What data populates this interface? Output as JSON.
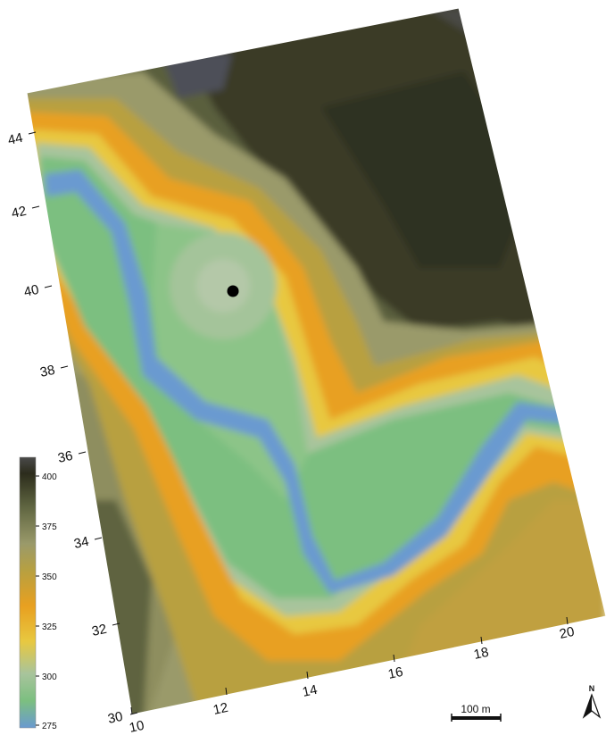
{
  "map": {
    "x_ticks": [
      "10",
      "12",
      "14",
      "16",
      "18",
      "20"
    ],
    "y_ticks": [
      "30",
      "32",
      "34",
      "36",
      "38",
      "40",
      "42",
      "44"
    ],
    "marker": "black dot",
    "colors": {
      "low": "#6a9ad0",
      "green": "#7cbf80",
      "pale": "#a8c49c",
      "yellow": "#e8c840",
      "orange": "#e8a020",
      "olive": "#b8a040",
      "khaki": "#9a9a6a",
      "dark_olive": "#5e6440",
      "dark": "#33331f",
      "peak": "#3a3a3a"
    }
  },
  "legend": {
    "labels": [
      "400",
      "375",
      "350",
      "325",
      "300",
      "275"
    ]
  },
  "scale_bar": {
    "label": "100 m"
  },
  "north_arrow": {
    "label": "N"
  }
}
